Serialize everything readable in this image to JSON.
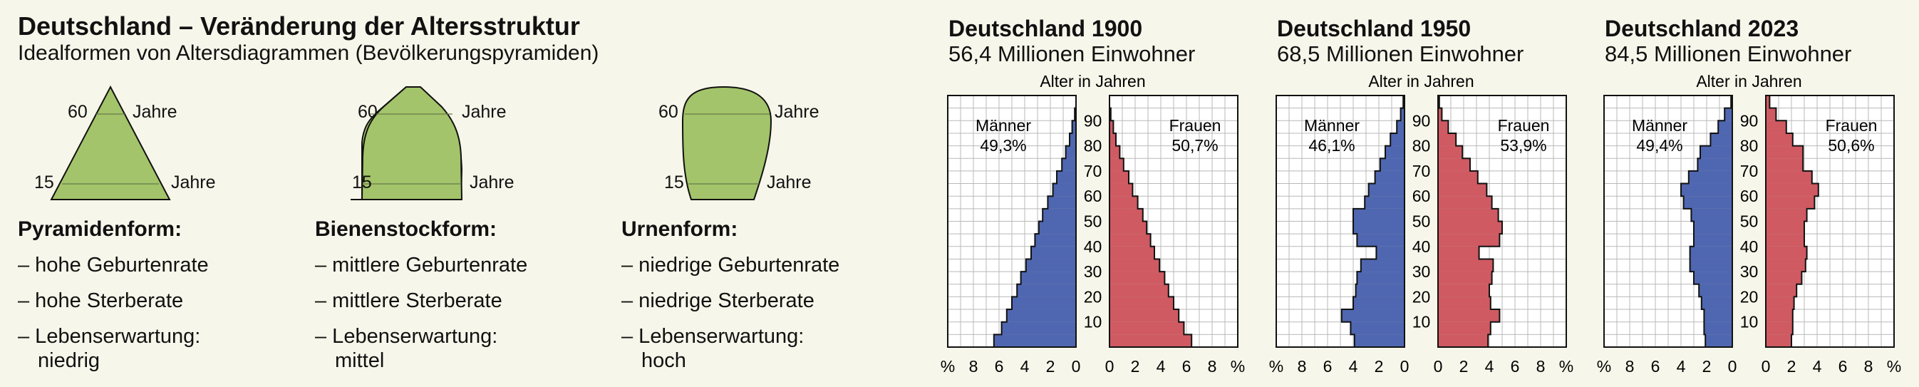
{
  "header": {
    "title": "Deutschland – Veränderung der Altersstruktur",
    "subtitle": "Idealformen von Altersdiagrammen (Bevölkerungspyramiden)"
  },
  "ideal_forms": [
    {
      "name": "Pyramidenform:",
      "label_60": "60",
      "label_15": "15",
      "unit": "Jahre",
      "lines": [
        "– hohe Geburtenrate",
        "– hohe Sterberate",
        "– Lebenserwartung:",
        "niedrig"
      ]
    },
    {
      "name": "Bienenstockform:",
      "label_60": "60",
      "label_15": "15",
      "unit": "Jahre",
      "lines": [
        "– mittlere Geburtenrate",
        "– mittlere Sterberate",
        "– Lebenserwartung:",
        "mittel"
      ]
    },
    {
      "name": "Urnenform:",
      "label_60": "60",
      "label_15": "15",
      "unit": "Jahre",
      "lines": [
        "– niedrige Geburtenrate",
        "– niedrige Sterberate",
        "– Lebenserwartung:",
        "hoch"
      ]
    }
  ],
  "colors": {
    "men": "#4f67b0",
    "women": "#cf5a62",
    "ideal_fill": "#a3c46a",
    "grid": "#b9b9b9"
  },
  "chart_data": [
    {
      "type": "bar",
      "title": "Deutschland 1900",
      "subtitle": "56,4 Millionen Einwohner",
      "axis_label": "Alter in Jahren",
      "men_label": "Männer",
      "men_share": "49,3%",
      "women_label": "Frauen",
      "women_share": "50,7%",
      "age_ticks": [
        "10",
        "20",
        "30",
        "40",
        "50",
        "60",
        "70",
        "80",
        "90"
      ],
      "men_ticks": [
        "%",
        "8",
        "6",
        "4",
        "2",
        "0"
      ],
      "women_ticks": [
        "0",
        "2",
        "4",
        "6",
        "8",
        "%"
      ],
      "xlim": [
        0,
        10
      ],
      "age_lim": [
        0,
        100
      ],
      "age_groups": [
        0,
        5,
        10,
        15,
        20,
        25,
        30,
        35,
        40,
        45,
        50,
        55,
        60,
        65,
        70,
        75,
        80,
        85,
        90,
        95
      ],
      "men": [
        6.4,
        5.8,
        5.4,
        5.0,
        4.6,
        4.3,
        3.9,
        3.5,
        3.2,
        2.9,
        2.6,
        2.2,
        1.8,
        1.5,
        1.1,
        0.8,
        0.5,
        0.3,
        0.1,
        0.0
      ],
      "women": [
        6.4,
        5.8,
        5.4,
        5.0,
        4.6,
        4.3,
        3.9,
        3.5,
        3.2,
        2.9,
        2.6,
        2.2,
        1.8,
        1.5,
        1.1,
        0.8,
        0.5,
        0.3,
        0.1,
        0.0
      ]
    },
    {
      "type": "bar",
      "title": "Deutschland 1950",
      "subtitle": "68,5 Millionen Einwohner",
      "axis_label": "Alter in Jahren",
      "men_label": "Männer",
      "men_share": "46,1%",
      "women_label": "Frauen",
      "women_share": "53,9%",
      "age_ticks": [
        "10",
        "20",
        "30",
        "40",
        "50",
        "60",
        "70",
        "80",
        "90"
      ],
      "men_ticks": [
        "%",
        "8",
        "6",
        "4",
        "2",
        "0"
      ],
      "women_ticks": [
        "0",
        "2",
        "4",
        "6",
        "8",
        "%"
      ],
      "xlim": [
        0,
        10
      ],
      "age_lim": [
        0,
        100
      ],
      "age_groups": [
        0,
        5,
        10,
        15,
        20,
        25,
        30,
        35,
        40,
        45,
        50,
        55,
        60,
        65,
        70,
        75,
        80,
        85,
        90,
        95
      ],
      "men": [
        3.9,
        4.2,
        4.9,
        4.0,
        3.8,
        3.7,
        3.4,
        2.2,
        3.7,
        4.0,
        4.0,
        3.1,
        2.8,
        2.3,
        1.9,
        1.5,
        1.1,
        0.6,
        0.3,
        0.1
      ],
      "women": [
        3.9,
        4.1,
        4.8,
        4.1,
        4.0,
        4.2,
        4.3,
        3.2,
        4.8,
        5.0,
        4.7,
        4.2,
        3.8,
        3.1,
        2.5,
        1.9,
        1.4,
        0.8,
        0.3,
        0.1
      ]
    },
    {
      "type": "bar",
      "title": "Deutschland 2023",
      "subtitle": "84,5 Millionen Einwohner",
      "axis_label": "Alter in Jahren",
      "men_label": "Männer",
      "men_share": "49,4%",
      "women_label": "Frauen",
      "women_share": "50,6%",
      "age_ticks": [
        "10",
        "20",
        "30",
        "40",
        "50",
        "60",
        "70",
        "80",
        "90"
      ],
      "men_ticks": [
        "%",
        "8",
        "6",
        "4",
        "2",
        "0"
      ],
      "women_ticks": [
        "0",
        "2",
        "4",
        "6",
        "8",
        "%"
      ],
      "xlim": [
        0,
        10
      ],
      "age_lim": [
        0,
        100
      ],
      "age_groups": [
        0,
        5,
        10,
        15,
        20,
        25,
        30,
        35,
        40,
        45,
        50,
        55,
        60,
        65,
        70,
        75,
        80,
        85,
        90,
        95
      ],
      "men": [
        2.1,
        2.2,
        2.2,
        2.4,
        2.6,
        3.0,
        3.3,
        3.3,
        3.0,
        3.0,
        3.2,
        3.8,
        4.0,
        3.4,
        2.7,
        2.5,
        1.7,
        1.1,
        0.6,
        0.1
      ],
      "women": [
        2.0,
        2.1,
        2.1,
        2.2,
        2.4,
        2.8,
        3.1,
        3.2,
        3.0,
        3.0,
        3.2,
        3.8,
        4.1,
        3.6,
        2.9,
        2.9,
        2.1,
        1.6,
        0.8,
        0.3
      ]
    }
  ]
}
